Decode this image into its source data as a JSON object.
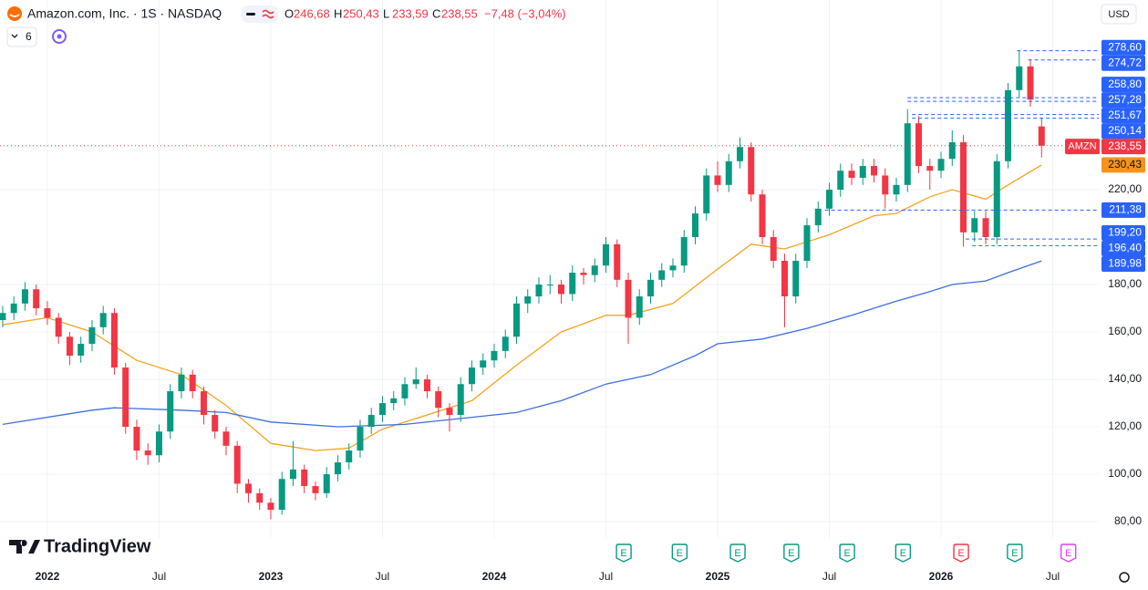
{
  "header": {
    "title": "Amazon.com, Inc. · 1S · NASDAQ",
    "ohlc": [
      {
        "key": "O",
        "value": "246,68"
      },
      {
        "key": "H",
        "value": "250,43"
      },
      {
        "key": "L",
        "value": "233,59"
      },
      {
        "key": "C",
        "value": "238,55"
      }
    ],
    "change": "−7,48 (−3,04%)",
    "indicators": "6",
    "currency": "USD",
    "brand": "TradingView"
  },
  "chart_data": {
    "type": "candlestick",
    "up_color": "#089981",
    "down_color": "#f23645",
    "xlim": [
      2021.788,
      2026.706
    ],
    "ylim": [
      73.1,
      300
    ],
    "xticks": [
      2022,
      {
        "value": 2022.5,
        "label": "Jul"
      },
      2023,
      {
        "value": 2023.5,
        "label": "Jul"
      },
      2024,
      {
        "value": 2024.5,
        "label": "Jul"
      },
      2025,
      {
        "value": 2025.5,
        "label": "Jul"
      },
      2026,
      {
        "value": 2026.5,
        "label": "Jul"
      }
    ],
    "yticks": [
      {
        "value": 80,
        "label": "80,00"
      },
      {
        "value": 100,
        "label": "100,00"
      },
      {
        "value": 120,
        "label": "120,00"
      },
      {
        "value": 140,
        "label": "140,00"
      },
      {
        "value": 160,
        "label": "160,00"
      },
      {
        "value": 180,
        "label": "180,00"
      },
      {
        "value": 220,
        "label": "220,00"
      }
    ],
    "grid": true,
    "candles": {
      "x": [
        2021.8,
        2021.85,
        2021.9,
        2021.95,
        2022,
        2022.05,
        2022.1,
        2022.15,
        2022.2,
        2022.25,
        2022.3,
        2022.35,
        2022.4,
        2022.45,
        2022.5,
        2022.55,
        2022.6,
        2022.65,
        2022.7,
        2022.75,
        2022.8,
        2022.85,
        2022.9,
        2022.95,
        2023,
        2023.05,
        2023.1,
        2023.15,
        2023.2,
        2023.25,
        2023.3,
        2023.35,
        2023.4,
        2023.45,
        2023.5,
        2023.55,
        2023.6,
        2023.65,
        2023.7,
        2023.75,
        2023.8,
        2023.85,
        2023.9,
        2023.95,
        2024,
        2024.05,
        2024.1,
        2024.15,
        2024.2,
        2024.25,
        2024.3,
        2024.35,
        2024.4,
        2024.45,
        2024.5,
        2024.55,
        2024.6,
        2024.65,
        2024.7,
        2024.75,
        2024.8,
        2024.85,
        2024.9,
        2024.95,
        2025,
        2025.05,
        2025.1,
        2025.15,
        2025.2,
        2025.25,
        2025.3,
        2025.35,
        2025.4,
        2025.45,
        2025.5,
        2025.55,
        2025.6,
        2025.65,
        2025.7,
        2025.75,
        2025.8,
        2025.85,
        2025.9,
        2025.95,
        2026,
        2026.05,
        2026.1,
        2026.15,
        2026.2,
        2026.25,
        2026.3,
        2026.35,
        2026.4,
        2026.45
      ],
      "open": [
        165,
        168,
        172,
        178,
        170,
        166,
        158,
        150,
        155,
        162,
        168,
        145,
        120,
        110,
        108,
        118,
        135,
        142,
        135,
        125,
        118,
        112,
        96,
        92,
        88,
        85,
        98,
        102,
        95,
        92,
        100,
        105,
        110,
        120,
        125,
        130,
        132,
        138,
        140,
        135,
        128,
        125,
        138,
        145,
        148,
        152,
        158,
        172,
        175,
        180,
        180,
        176,
        185,
        184,
        188,
        197,
        182,
        166,
        175,
        182,
        186,
        188,
        200,
        210,
        226,
        222,
        232,
        238,
        218,
        200,
        190,
        175,
        190,
        205,
        212,
        220,
        228,
        225,
        230,
        226,
        218,
        222,
        248,
        230,
        228,
        233,
        240,
        202,
        208,
        200,
        232,
        262,
        272,
        246.68
      ],
      "high": [
        171,
        175,
        181,
        180,
        173,
        168,
        160,
        158,
        165,
        171,
        170,
        147,
        123,
        113,
        121,
        138,
        145,
        144,
        137,
        127,
        120,
        114,
        98,
        94,
        90,
        101,
        114,
        104,
        97,
        103,
        108,
        113,
        123,
        128,
        133,
        135,
        141,
        145,
        142,
        137,
        130,
        141,
        148,
        151,
        155,
        161,
        175,
        178,
        183,
        184,
        182,
        188,
        187,
        191,
        200,
        199,
        185,
        178,
        185,
        189,
        191,
        203,
        213,
        229,
        232,
        235,
        242,
        240,
        220,
        203,
        193,
        193,
        208,
        215,
        223,
        231,
        231,
        233,
        233,
        229,
        225,
        254,
        251,
        233,
        236,
        245,
        243,
        211,
        211,
        235,
        265,
        278.6,
        275,
        250.43
      ],
      "low": [
        162,
        165,
        169,
        167,
        163,
        155,
        146,
        147,
        152,
        159,
        142,
        117,
        106,
        104,
        105,
        115,
        132,
        132,
        121,
        115,
        108,
        92,
        88,
        85,
        81,
        83,
        95,
        92,
        89,
        90,
        97,
        102,
        107,
        117,
        122,
        127,
        129,
        136,
        132,
        124,
        118,
        122,
        135,
        142,
        145,
        149,
        155,
        168,
        172,
        176,
        172,
        173,
        180,
        181,
        185,
        179,
        155,
        163,
        172,
        179,
        183,
        185,
        197,
        207,
        219,
        219,
        229,
        215,
        197,
        187,
        162,
        172,
        187,
        202,
        209,
        217,
        222,
        222,
        223,
        212,
        215,
        219,
        227,
        220,
        225,
        230,
        196,
        198,
        197,
        197,
        229,
        259,
        255,
        233.59
      ],
      "close": [
        168,
        172,
        178,
        170,
        166,
        158,
        150,
        155,
        162,
        168,
        145,
        120,
        110,
        108,
        118,
        135,
        142,
        135,
        125,
        118,
        112,
        96,
        92,
        88,
        85,
        98,
        102,
        95,
        92,
        100,
        105,
        110,
        120,
        125,
        130,
        132,
        138,
        140,
        135,
        128,
        125,
        138,
        145,
        148,
        152,
        158,
        172,
        175,
        180,
        180,
        176,
        185,
        184,
        188,
        197,
        182,
        166,
        175,
        182,
        186,
        188,
        200,
        210,
        226,
        222,
        232,
        238,
        218,
        200,
        190,
        175,
        190,
        205,
        212,
        220,
        228,
        225,
        230,
        226,
        218,
        222,
        248,
        230,
        228,
        233,
        240,
        202,
        208,
        200,
        232,
        262,
        272,
        258,
        238.55
      ]
    },
    "lines": [
      {
        "color": "#f7a21b",
        "x": [
          2021.8,
          2022,
          2022.2,
          2022.4,
          2022.6,
          2022.8,
          2023,
          2023.2,
          2023.35,
          2023.5,
          2023.7,
          2023.9,
          2024.1,
          2024.3,
          2024.5,
          2024.6,
          2024.8,
          2025,
          2025.15,
          2025.3,
          2025.5,
          2025.7,
          2025.8,
          2025.95,
          2026.05,
          2026.2,
          2026.3,
          2026.45
        ],
        "values": [
          163,
          166,
          160,
          148,
          142,
          129,
          113,
          110,
          111,
          119,
          125,
          131,
          146,
          160,
          167,
          167,
          172,
          186.5,
          197,
          195,
          201,
          209,
          210,
          217,
          220,
          216,
          222,
          230.43
        ],
        "end_label": "230,43",
        "label_color": "#f7931a"
      },
      {
        "color": "#3d6ee0",
        "x": [
          2021.8,
          2022.2,
          2022.3,
          2022.6,
          2022.8,
          2023,
          2023.3,
          2023.6,
          2023.9,
          2024.1,
          2024.3,
          2024.5,
          2024.7,
          2024.9,
          2025,
          2025.2,
          2025.4,
          2025.6,
          2025.8,
          2025.95,
          2026.05,
          2026.2,
          2026.3,
          2026.45
        ],
        "values": [
          121,
          127,
          128,
          127,
          126,
          122,
          120,
          121,
          124,
          126,
          131,
          138,
          142,
          150,
          155,
          157,
          161.5,
          167,
          173,
          177,
          180,
          181.5,
          185,
          189.98
        ],
        "end_label": "189,98",
        "label_color": "#2962ff"
      }
    ],
    "levels": [
      {
        "value": 278.6,
        "label": "278,60",
        "from": 2026.34
      },
      {
        "value": 274.72,
        "label": "274,72",
        "from": 2026.39
      },
      {
        "value": 258.8,
        "label": "258,80",
        "from": 2025.85
      },
      {
        "value": 257.28,
        "label": "257,28",
        "from": 2025.85
      },
      {
        "value": 251.67,
        "label": "251,67",
        "from": 2025.87
      },
      {
        "value": 250.14,
        "label": "250,14",
        "from": 2025.87
      },
      {
        "value": 211.38,
        "label": "211,38",
        "from": 2025.48
      },
      {
        "value": 199.2,
        "label": "199,20",
        "from": 2026.11
      },
      {
        "value": 196.4,
        "label": "196,40",
        "from": 2026.14
      }
    ],
    "level_color": "#2962ff",
    "last": {
      "value": 238.55,
      "label": "238,55",
      "symbol": "AMZN",
      "color": "#f23645"
    },
    "events": [
      {
        "x": 2024.58,
        "label": "E",
        "color": "#089981"
      },
      {
        "x": 2024.83,
        "label": "E",
        "color": "#089981"
      },
      {
        "x": 2025.09,
        "label": "E",
        "color": "#089981"
      },
      {
        "x": 2025.33,
        "label": "E",
        "color": "#089981"
      },
      {
        "x": 2025.58,
        "label": "E",
        "color": "#089981"
      },
      {
        "x": 2025.83,
        "label": "E",
        "color": "#089981"
      },
      {
        "x": 2026.09,
        "label": "E",
        "color": "#f23645"
      },
      {
        "x": 2026.33,
        "label": "E",
        "color": "#089981"
      },
      {
        "x": 2026.57,
        "label": "E",
        "color": "#e040fb"
      }
    ]
  }
}
